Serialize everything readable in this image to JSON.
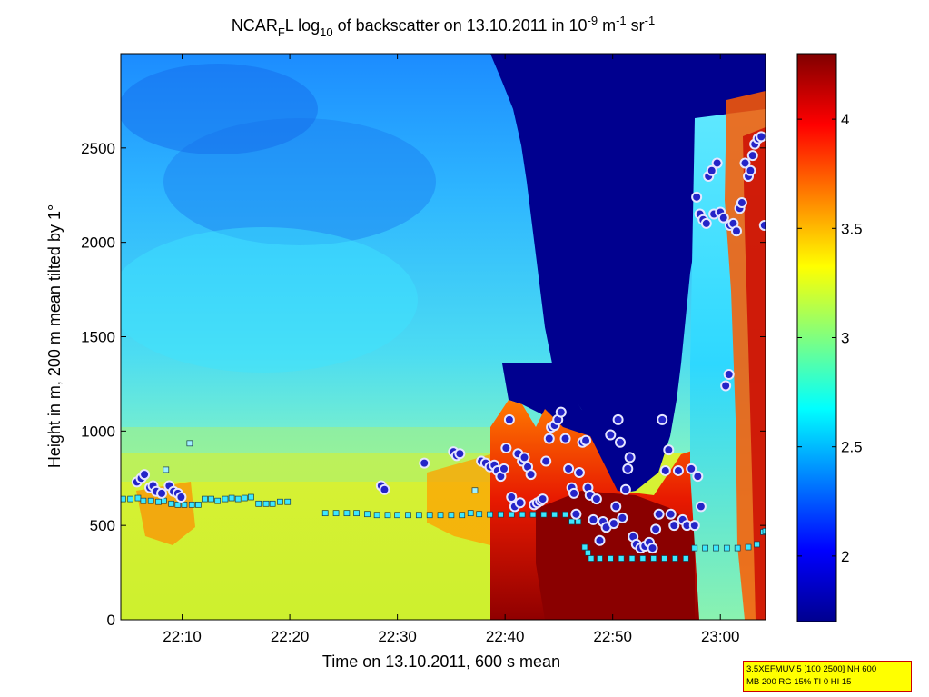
{
  "chart_data": {
    "type": "heatmap",
    "title": {
      "p1": "NCAR",
      "sub1": "F",
      "p2": "L log",
      "sub2": "10",
      "p3": " of backscatter on 13.10.2011 in 10",
      "sup1": "-9",
      "p4": " m",
      "sup2": "-1",
      "p5": " sr",
      "sup3": "-1"
    },
    "xlabel": "Time on 13.10.2011, 600 s mean",
    "ylabel": "Height in m, 200 m mean tilted by 1°",
    "x_range_min": [
      4.3,
      64.2
    ],
    "x_ticks": [
      {
        "v": 10,
        "label": "22:10"
      },
      {
        "v": 20,
        "label": "22:20"
      },
      {
        "v": 30,
        "label": "22:30"
      },
      {
        "v": 40,
        "label": "22:40"
      },
      {
        "v": 50,
        "label": "22:50"
      },
      {
        "v": 60,
        "label": "23:00"
      }
    ],
    "ylim": [
      0,
      3000
    ],
    "y_ticks": [
      0,
      500,
      1000,
      1500,
      2000,
      2500
    ],
    "colorbar": {
      "clim": [
        1.7,
        4.3
      ],
      "ticks": [
        2,
        2.5,
        3,
        3.5,
        4
      ],
      "colormap": "jet"
    },
    "grid": false,
    "series": [
      {
        "marker": "cyan-square",
        "points": [
          [
            4.5,
            640
          ],
          [
            5.2,
            640
          ],
          [
            5.9,
            645
          ],
          [
            6.4,
            630
          ],
          [
            7.1,
            630
          ],
          [
            7.8,
            625
          ],
          [
            8.3,
            630
          ],
          [
            9.0,
            615
          ],
          [
            9.6,
            610
          ],
          [
            10.2,
            610
          ],
          [
            10.9,
            610
          ],
          [
            11.5,
            610
          ],
          [
            12.1,
            640
          ],
          [
            12.7,
            640
          ],
          [
            13.3,
            630
          ],
          [
            14.0,
            640
          ],
          [
            14.6,
            645
          ],
          [
            15.2,
            640
          ],
          [
            15.8,
            645
          ],
          [
            16.4,
            650
          ],
          [
            17.1,
            615
          ],
          [
            17.8,
            615
          ],
          [
            18.4,
            615
          ],
          [
            19.1,
            625
          ],
          [
            19.8,
            625
          ],
          [
            23.3,
            565
          ],
          [
            24.3,
            565
          ],
          [
            25.3,
            565
          ],
          [
            26.2,
            565
          ],
          [
            27.2,
            560
          ],
          [
            28.1,
            555
          ],
          [
            29.1,
            555
          ],
          [
            30.0,
            555
          ],
          [
            31.0,
            555
          ],
          [
            32.0,
            555
          ],
          [
            33.0,
            555
          ],
          [
            34.0,
            555
          ],
          [
            35.0,
            555
          ],
          [
            36.0,
            555
          ],
          [
            36.8,
            565
          ],
          [
            37.6,
            560
          ],
          [
            38.6,
            558
          ],
          [
            39.6,
            558
          ],
          [
            40.6,
            558
          ],
          [
            41.6,
            558
          ],
          [
            42.6,
            558
          ],
          [
            43.6,
            558
          ],
          [
            44.6,
            558
          ],
          [
            45.6,
            558
          ],
          [
            46.2,
            520
          ],
          [
            46.8,
            520
          ],
          [
            47.4,
            385
          ],
          [
            47.7,
            355
          ],
          [
            48.0,
            325
          ],
          [
            48.8,
            325
          ],
          [
            49.8,
            325
          ],
          [
            50.8,
            325
          ],
          [
            51.8,
            325
          ],
          [
            52.8,
            325
          ],
          [
            53.8,
            325
          ],
          [
            54.8,
            325
          ],
          [
            55.8,
            325
          ],
          [
            56.8,
            325
          ],
          [
            57.6,
            380
          ],
          [
            58.6,
            380
          ],
          [
            59.6,
            380
          ],
          [
            60.6,
            380
          ],
          [
            61.6,
            380
          ],
          [
            62.6,
            385
          ],
          [
            63.4,
            400
          ],
          [
            64.0,
            465
          ],
          [
            64.2,
            470
          ]
        ]
      },
      {
        "marker": "isolated-square",
        "points": [
          [
            8.5,
            795
          ],
          [
            10.7,
            935
          ],
          [
            37.2,
            685
          ]
        ]
      },
      {
        "marker": "blue-circle",
        "points": [
          [
            5.8,
            730
          ],
          [
            6.2,
            750
          ],
          [
            6.5,
            770
          ],
          [
            7.0,
            700
          ],
          [
            7.3,
            710
          ],
          [
            7.6,
            680
          ],
          [
            8.1,
            670
          ],
          [
            8.8,
            710
          ],
          [
            9.2,
            680
          ],
          [
            9.6,
            670
          ],
          [
            9.9,
            650
          ],
          [
            28.5,
            710
          ],
          [
            28.8,
            690
          ],
          [
            32.5,
            830
          ],
          [
            35.2,
            890
          ],
          [
            35.5,
            870
          ],
          [
            35.8,
            880
          ],
          [
            37.8,
            840
          ],
          [
            38.2,
            830
          ],
          [
            38.6,
            810
          ],
          [
            39.0,
            820
          ],
          [
            39.3,
            790
          ],
          [
            39.6,
            760
          ],
          [
            39.9,
            800
          ],
          [
            40.1,
            910
          ],
          [
            40.4,
            1060
          ],
          [
            40.6,
            650
          ],
          [
            40.9,
            600
          ],
          [
            41.2,
            880
          ],
          [
            41.4,
            620
          ],
          [
            41.6,
            840
          ],
          [
            41.8,
            860
          ],
          [
            42.1,
            810
          ],
          [
            42.4,
            770
          ],
          [
            42.7,
            610
          ],
          [
            43.0,
            620
          ],
          [
            43.3,
            630
          ],
          [
            43.5,
            640
          ],
          [
            43.8,
            840
          ],
          [
            44.1,
            960
          ],
          [
            44.3,
            1020
          ],
          [
            44.6,
            1030
          ],
          [
            44.9,
            1060
          ],
          [
            45.2,
            1100
          ],
          [
            45.6,
            960
          ],
          [
            45.9,
            800
          ],
          [
            46.2,
            700
          ],
          [
            46.4,
            670
          ],
          [
            46.6,
            560
          ],
          [
            46.9,
            780
          ],
          [
            47.2,
            940
          ],
          [
            47.5,
            950
          ],
          [
            47.7,
            700
          ],
          [
            47.9,
            660
          ],
          [
            48.2,
            530
          ],
          [
            48.5,
            640
          ],
          [
            48.8,
            420
          ],
          [
            49.1,
            520
          ],
          [
            49.4,
            490
          ],
          [
            49.8,
            980
          ],
          [
            50.1,
            510
          ],
          [
            50.3,
            600
          ],
          [
            50.5,
            1060
          ],
          [
            50.7,
            940
          ],
          [
            50.9,
            540
          ],
          [
            51.2,
            690
          ],
          [
            51.4,
            800
          ],
          [
            51.6,
            860
          ],
          [
            51.9,
            440
          ],
          [
            52.2,
            400
          ],
          [
            52.6,
            380
          ],
          [
            53.0,
            390
          ],
          [
            53.4,
            410
          ],
          [
            53.7,
            380
          ],
          [
            54.0,
            480
          ],
          [
            54.3,
            560
          ],
          [
            54.6,
            1060
          ],
          [
            54.9,
            790
          ],
          [
            55.2,
            900
          ],
          [
            55.4,
            560
          ],
          [
            55.7,
            500
          ],
          [
            56.1,
            790
          ],
          [
            56.5,
            530
          ],
          [
            56.9,
            500
          ],
          [
            57.3,
            800
          ],
          [
            57.6,
            500
          ],
          [
            57.9,
            760
          ],
          [
            58.2,
            600
          ],
          [
            57.8,
            2240
          ],
          [
            58.1,
            2150
          ],
          [
            58.4,
            2120
          ],
          [
            58.7,
            2100
          ],
          [
            58.9,
            2350
          ],
          [
            59.2,
            2380
          ],
          [
            59.4,
            2150
          ],
          [
            59.7,
            2420
          ],
          [
            60.0,
            2160
          ],
          [
            60.3,
            2130
          ],
          [
            60.5,
            1240
          ],
          [
            60.8,
            1300
          ],
          [
            60.9,
            2090
          ],
          [
            61.2,
            2100
          ],
          [
            61.5,
            2060
          ],
          [
            61.8,
            2180
          ],
          [
            62.0,
            2210
          ],
          [
            62.3,
            2420
          ],
          [
            62.6,
            2350
          ],
          [
            62.8,
            2380
          ],
          [
            63.0,
            2460
          ],
          [
            63.2,
            2520
          ],
          [
            63.5,
            2550
          ],
          [
            63.8,
            2560
          ],
          [
            64.1,
            2090
          ]
        ]
      }
    ]
  },
  "settings_box": {
    "line1": "3.5XEFMUV 5 [100 2500] NH 600",
    "line2": "MB 200 RG 15% TI 0 HI 15"
  }
}
